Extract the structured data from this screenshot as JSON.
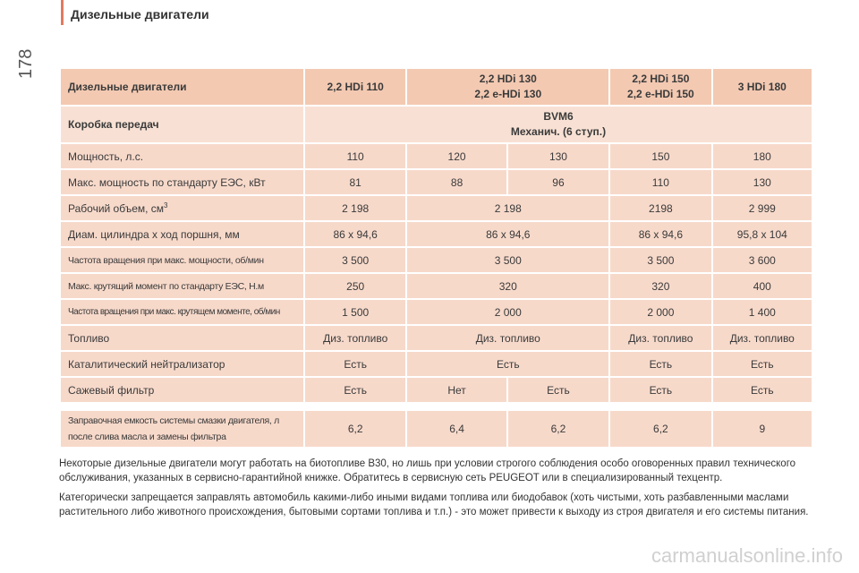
{
  "page": {
    "title": "Дизельные двигатели",
    "number": "178"
  },
  "table": {
    "header": {
      "label": "Дизельные двигатели",
      "col1": "2,2 HDi 110",
      "col2_line1": "2,2 HDi 130",
      "col2_line2": "2,2 e-HDi 130",
      "col3_line1": "2,2 HDi 150",
      "col3_line2": "2,2 e-HDi 150",
      "col4": "3 HDi 180"
    },
    "gearbox": {
      "label": "Коробка передач",
      "line1": "BVM6",
      "line2": "Механич. (6 ступ.)"
    },
    "power": {
      "label": "Мощность, л.с.",
      "v": [
        "110",
        "120",
        "130",
        "150",
        "180"
      ]
    },
    "power_kw": {
      "label": "Макс. мощность по стандарту ЕЭС, кВт",
      "v": [
        "81",
        "88",
        "96",
        "110",
        "130"
      ]
    },
    "volume": {
      "label": "Рабочий объем, см",
      "sup": "3",
      "v": [
        "2 198",
        "2 198",
        "2198",
        "2 999"
      ]
    },
    "bore": {
      "label": "Диам. цилиндра х ход поршня, мм",
      "v": [
        "86 х 94,6",
        "86 х 94,6",
        "86 х 94,6",
        "95,8 х 104"
      ]
    },
    "rpm_power": {
      "label": "Частота вращения при макс. мощности, об/мин",
      "v": [
        "3 500",
        "3 500",
        "3 500",
        "3 600"
      ]
    },
    "torque": {
      "label": "Макс. крутящий момент по стандарту ЕЭС, Н.м",
      "v": [
        "250",
        "320",
        "320",
        "400"
      ]
    },
    "rpm_torque": {
      "label": "Частота вращения при макс. крутящем моменте, об/мин",
      "v": [
        "1 500",
        "2 000",
        "2 000",
        "1 400"
      ]
    },
    "fuel": {
      "label": "Топливо",
      "v": [
        "Диз. топливо",
        "Диз. топливо",
        "Диз. топливо",
        "Диз. топливо"
      ]
    },
    "catalyst": {
      "label": "Каталитический нейтрализатор",
      "v": [
        "Есть",
        "Есть",
        "Есть",
        "Есть"
      ]
    },
    "filter": {
      "label": "Сажевый фильтр",
      "v": [
        "Есть",
        "Нет",
        "Есть",
        "Есть",
        "Есть"
      ]
    },
    "oil": {
      "label_line1": "Заправочная емкость системы смазки двигателя, л",
      "label_line2": "после слива масла и замены фильтра",
      "v": [
        "6,2",
        "6,4",
        "6,2",
        "6,2",
        "9"
      ]
    }
  },
  "notes": [
    "Некоторые дизельные двигатели могут работать на биотопливе B30, но лишь при условии строгого соблюдения особо оговоренных правил технического обслуживания, указанных в сервисно-гарантийной книжке. Обратитесь в сервисную сеть PEUGEOT или в специализированный техцентр.",
    "Категорически запрещается заправлять автомобиль какими-либо иными видами топлива или биодобавок (хоть чистыми, хоть разбавленными маслами растительного либо животного происхождения, бытовыми сортами топлива и т.п.) - это может привести к выходу из строя двигателя и его системы питания."
  ],
  "watermark": "carmanualsonline.info"
}
